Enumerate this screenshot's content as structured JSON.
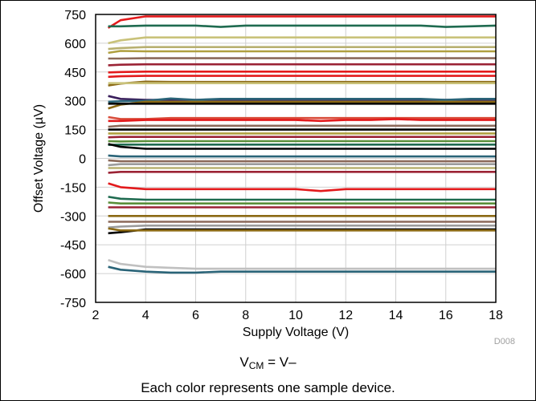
{
  "chart_data": {
    "type": "line",
    "xlabel": "Supply Voltage (V)",
    "ylabel": "Offset Voltage (µV)",
    "xlim": [
      2,
      18
    ],
    "ylim": [
      -750,
      750
    ],
    "x_ticks": [
      "2",
      "4",
      "6",
      "8",
      "10",
      "12",
      "14",
      "16",
      "18"
    ],
    "y_ticks": [
      "750",
      "600",
      "450",
      "300",
      "150",
      "0",
      "-150",
      "-300",
      "-450",
      "-600",
      "-750"
    ],
    "figure_id": "D008",
    "grid": true,
    "x": [
      2.5,
      3,
      4,
      5,
      6,
      7,
      8,
      9,
      10,
      11,
      12,
      13,
      14,
      15,
      16,
      17,
      18
    ],
    "series": [
      {
        "color": "#e31a1c",
        "values": [
          680,
          720,
          740,
          740,
          740,
          740,
          740,
          740,
          740,
          740,
          740,
          740,
          740,
          740,
          740,
          740,
          740
        ]
      },
      {
        "color": "#1f6b50",
        "values": [
          688,
          688,
          692,
          692,
          692,
          685,
          692,
          692,
          692,
          692,
          692,
          692,
          692,
          692,
          685,
          688,
          692
        ]
      },
      {
        "color": "#c9c27a",
        "values": [
          600,
          615,
          630,
          630,
          630,
          630,
          630,
          630,
          630,
          630,
          630,
          630,
          630,
          630,
          630,
          630,
          630
        ]
      },
      {
        "color": "#b8b070",
        "values": [
          570,
          575,
          580,
          580,
          580,
          580,
          580,
          580,
          580,
          580,
          580,
          580,
          580,
          580,
          580,
          580,
          580
        ]
      },
      {
        "color": "#b0a040",
        "values": [
          550,
          560,
          558,
          558,
          558,
          558,
          558,
          558,
          558,
          558,
          558,
          558,
          558,
          558,
          558,
          558,
          558
        ]
      },
      {
        "color": "#8c6a5a",
        "values": [
          520,
          520,
          522,
          522,
          522,
          522,
          522,
          522,
          522,
          522,
          522,
          522,
          522,
          522,
          522,
          522,
          522
        ]
      },
      {
        "color": "#9b2335",
        "values": [
          485,
          488,
          490,
          490,
          490,
          490,
          490,
          490,
          490,
          490,
          490,
          490,
          490,
          490,
          490,
          490,
          490
        ]
      },
      {
        "color": "#e31a1c",
        "values": [
          448,
          450,
          452,
          452,
          452,
          452,
          452,
          452,
          452,
          452,
          452,
          452,
          452,
          452,
          452,
          452,
          452
        ]
      },
      {
        "color": "#e31a1c",
        "values": [
          425,
          428,
          430,
          430,
          430,
          430,
          430,
          430,
          430,
          430,
          430,
          430,
          430,
          430,
          430,
          430,
          430
        ]
      },
      {
        "color": "#8b6914",
        "values": [
          380,
          390,
          400,
          398,
          398,
          398,
          398,
          398,
          398,
          398,
          398,
          398,
          398,
          398,
          398,
          398,
          398
        ]
      },
      {
        "color": "#c9c27a",
        "values": [
          392,
          392,
          392,
          392,
          392,
          392,
          392,
          392,
          392,
          392,
          392,
          392,
          392,
          392,
          392,
          392,
          392
        ]
      },
      {
        "color": "#3a1f5c",
        "values": [
          325,
          310,
          305,
          305,
          305,
          305,
          305,
          305,
          305,
          305,
          305,
          305,
          305,
          305,
          305,
          305,
          305
        ]
      },
      {
        "color": "#2a6478",
        "values": [
          295,
          298,
          300,
          312,
          305,
          310,
          310,
          310,
          310,
          310,
          310,
          310,
          310,
          310,
          305,
          310,
          310
        ]
      },
      {
        "color": "#8b6914",
        "values": [
          260,
          280,
          295,
          295,
          295,
          295,
          295,
          295,
          295,
          295,
          295,
          295,
          295,
          295,
          295,
          295,
          295
        ]
      },
      {
        "color": "#000000",
        "values": [
          285,
          285,
          285,
          285,
          285,
          285,
          285,
          285,
          285,
          285,
          285,
          285,
          285,
          285,
          285,
          285,
          285
        ]
      },
      {
        "color": "#d94c3a",
        "values": [
          215,
          205,
          205,
          210,
          210,
          210,
          210,
          210,
          210,
          210,
          210,
          210,
          210,
          210,
          210,
          210,
          210
        ]
      },
      {
        "color": "#e31a1c",
        "values": [
          195,
          195,
          200,
          200,
          200,
          200,
          200,
          200,
          200,
          195,
          200,
          200,
          205,
          200,
          200,
          200,
          200
        ]
      },
      {
        "color": "#8c6a5a",
        "values": [
          165,
          170,
          170,
          170,
          170,
          170,
          170,
          170,
          170,
          170,
          170,
          170,
          170,
          170,
          170,
          170,
          170
        ]
      },
      {
        "color": "#000000",
        "values": [
          150,
          150,
          150,
          150,
          150,
          150,
          150,
          150,
          150,
          150,
          150,
          150,
          150,
          150,
          150,
          150,
          150
        ]
      },
      {
        "color": "#b0a040",
        "values": [
          130,
          130,
          130,
          130,
          130,
          130,
          130,
          130,
          130,
          130,
          130,
          130,
          130,
          130,
          130,
          130,
          130
        ]
      },
      {
        "color": "#9b2335",
        "values": [
          110,
          112,
          112,
          112,
          112,
          112,
          112,
          112,
          112,
          112,
          112,
          112,
          112,
          112,
          112,
          112,
          112
        ]
      },
      {
        "color": "#5a8f3a",
        "values": [
          90,
          88,
          90,
          90,
          90,
          90,
          90,
          90,
          90,
          90,
          90,
          90,
          90,
          90,
          90,
          90,
          90
        ]
      },
      {
        "color": "#1f6b50",
        "values": [
          70,
          72,
          72,
          72,
          72,
          72,
          72,
          72,
          72,
          72,
          72,
          72,
          72,
          72,
          72,
          72,
          72
        ]
      },
      {
        "color": "#000000",
        "values": [
          75,
          60,
          50,
          50,
          50,
          50,
          50,
          50,
          50,
          50,
          50,
          50,
          50,
          50,
          50,
          50,
          50
        ]
      },
      {
        "color": "#2a6478",
        "values": [
          15,
          10,
          10,
          10,
          10,
          10,
          10,
          10,
          10,
          10,
          10,
          10,
          10,
          10,
          10,
          10,
          10
        ]
      },
      {
        "color": "#8c6a5a",
        "values": [
          -10,
          -15,
          -15,
          -15,
          -15,
          -15,
          -15,
          -15,
          -15,
          -15,
          -15,
          -15,
          -15,
          -15,
          -15,
          -15,
          -15
        ]
      },
      {
        "color": "#9b9b9b",
        "values": [
          -35,
          -30,
          -30,
          -30,
          -30,
          -30,
          -30,
          -30,
          -30,
          -30,
          -30,
          -30,
          -30,
          -30,
          -30,
          -30,
          -30
        ]
      },
      {
        "color": "#b8b070",
        "values": [
          -50,
          -50,
          -50,
          -50,
          -50,
          -50,
          -50,
          -50,
          -50,
          -50,
          -50,
          -50,
          -50,
          -50,
          -50,
          -50,
          -50
        ]
      },
      {
        "color": "#9b2335",
        "values": [
          -75,
          -70,
          -70,
          -70,
          -70,
          -70,
          -70,
          -70,
          -70,
          -70,
          -70,
          -70,
          -70,
          -70,
          -70,
          -70,
          -70
        ]
      },
      {
        "color": "#e31a1c",
        "values": [
          -130,
          -150,
          -160,
          -160,
          -160,
          -160,
          -160,
          -160,
          -160,
          -170,
          -160,
          -160,
          -160,
          -160,
          -160,
          -160,
          -160
        ]
      },
      {
        "color": "#1f6b50",
        "values": [
          -200,
          -210,
          -215,
          -215,
          -215,
          -215,
          -215,
          -215,
          -215,
          -215,
          -215,
          -215,
          -215,
          -215,
          -215,
          -215,
          -215
        ]
      },
      {
        "color": "#5a8f3a",
        "values": [
          -230,
          -235,
          -235,
          -235,
          -235,
          -235,
          -235,
          -235,
          -235,
          -235,
          -235,
          -235,
          -235,
          -235,
          -235,
          -235,
          -235
        ]
      },
      {
        "color": "#9b2335",
        "values": [
          -255,
          -255,
          -255,
          -255,
          -255,
          -255,
          -255,
          -255,
          -255,
          -255,
          -255,
          -255,
          -255,
          -255,
          -255,
          -255,
          -255
        ]
      },
      {
        "color": "#8b6914",
        "values": [
          -300,
          -300,
          -300,
          -300,
          -300,
          -300,
          -300,
          -300,
          -300,
          -300,
          -300,
          -300,
          -300,
          -300,
          -300,
          -300,
          -300
        ]
      },
      {
        "color": "#8c6a5a",
        "values": [
          -330,
          -330,
          -330,
          -330,
          -330,
          -330,
          -330,
          -330,
          -330,
          -330,
          -330,
          -330,
          -330,
          -330,
          -330,
          -330,
          -330
        ]
      },
      {
        "color": "#9b9b9b",
        "values": [
          -360,
          -355,
          -350,
          -350,
          -350,
          -350,
          -350,
          -350,
          -350,
          -350,
          -350,
          -350,
          -350,
          -350,
          -350,
          -350,
          -350
        ]
      },
      {
        "color": "#000000",
        "values": [
          -390,
          -385,
          -370,
          -370,
          -370,
          -370,
          -370,
          -370,
          -370,
          -370,
          -370,
          -370,
          -370,
          -370,
          -370,
          -370,
          -370
        ]
      },
      {
        "color": "#8b6914",
        "values": [
          -365,
          -375,
          -375,
          -375,
          -375,
          -375,
          -375,
          -375,
          -375,
          -375,
          -375,
          -375,
          -375,
          -375,
          -375,
          -375,
          -375
        ]
      },
      {
        "color": "#c0c0c0",
        "values": [
          -530,
          -550,
          -565,
          -570,
          -575,
          -575,
          -575,
          -575,
          -575,
          -575,
          -575,
          -575,
          -575,
          -575,
          -575,
          -575,
          -575
        ]
      },
      {
        "color": "#2a6478",
        "values": [
          -565,
          -580,
          -590,
          -595,
          -595,
          -590,
          -590,
          -590,
          -590,
          -590,
          -590,
          -590,
          -590,
          -590,
          -590,
          -590,
          -590
        ]
      }
    ]
  },
  "captions": {
    "vcm_symbol": "V",
    "vcm_subscript": "CM",
    "vcm_rest": " = V–",
    "note": "Each color represents one sample device."
  }
}
